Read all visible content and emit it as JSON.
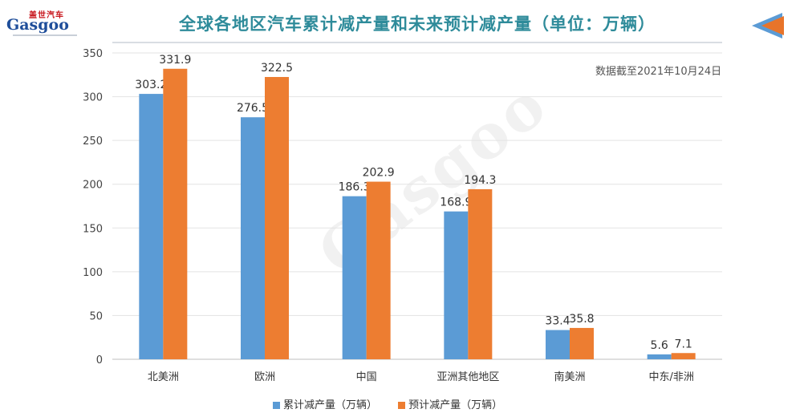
{
  "header": {
    "logo_top": "盖世汽车",
    "logo_text": "Gasgoo",
    "title": "全球各地区汽车累计减产量和未来预计减产量（单位：万辆）",
    "note": "数据截至2021年10月24日"
  },
  "colors": {
    "series1": "#5b9bd5",
    "series2": "#ed7d31",
    "title": "#2e8b9a",
    "accent_arrow": "#e8742a"
  },
  "chart_data": {
    "type": "bar",
    "categories": [
      "北美洲",
      "欧洲",
      "中国",
      "亚洲其他地区",
      "南美洲",
      "中东/非洲"
    ],
    "series": [
      {
        "name": "累计减产量（万辆）",
        "values": [
          303.2,
          276.5,
          186.3,
          168.9,
          33.4,
          5.6
        ]
      },
      {
        "name": "预计减产量（万辆）",
        "values": [
          331.9,
          322.5,
          202.9,
          194.3,
          35.8,
          7.1
        ]
      }
    ],
    "value_labels": [
      [
        "303.2",
        "276.5",
        "186.3",
        "168.9",
        "33.4",
        "5.6"
      ],
      [
        "331.9",
        "322.5",
        "202.9",
        "194.3",
        "35.8",
        "7.1"
      ]
    ],
    "yticks": [
      "0",
      "50",
      "100",
      "150",
      "200",
      "250",
      "300",
      "350"
    ],
    "ylim": [
      0,
      350
    ],
    "grid": true,
    "legend": "bottom"
  }
}
